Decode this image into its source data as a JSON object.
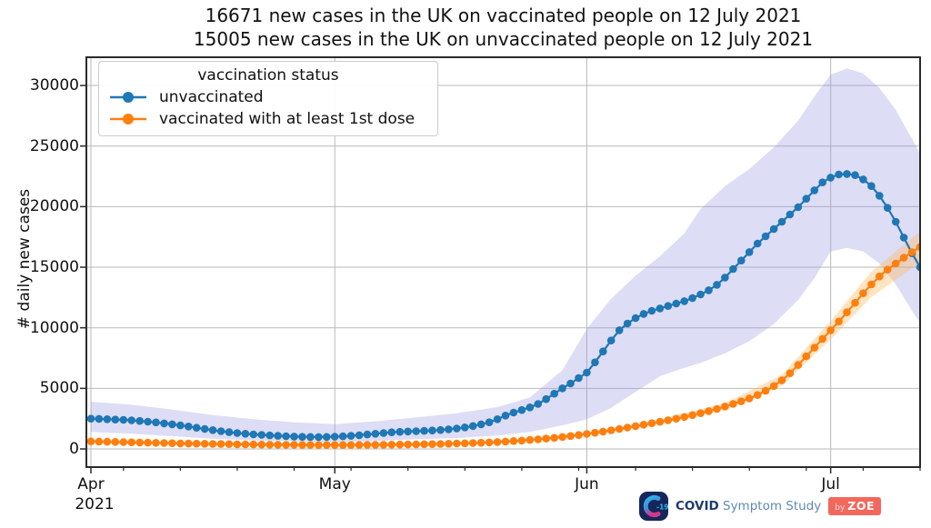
{
  "title": {
    "line1": "16671 new cases in the UK on vaccinated people on 12 July 2021",
    "line2": "15005 new cases in the UK on unvaccinated people on 12 July 2021"
  },
  "y_axis": {
    "label": "# daily new cases"
  },
  "x_axis": {
    "year_label": "2021"
  },
  "legend": {
    "title": "vaccination status",
    "entries": [
      {
        "label": "unvaccinated",
        "color": "#1f77b4"
      },
      {
        "label": "vaccinated with at least 1st dose",
        "color": "#ff7f0e"
      }
    ]
  },
  "branding": {
    "icon_label": "-19",
    "name_bold": "COVID",
    "name_rest": " Symptom Study",
    "badge_by": "by",
    "badge_zoe": "ZOE"
  },
  "chart_data": {
    "type": "line",
    "title": "16671 new cases in the UK on vaccinated people on 12 July 2021 / 15005 new cases in the UK on unvaccinated people on 12 July 2021",
    "xlabel": "",
    "ylabel": "# daily new cases",
    "x_start_date": "2021-04-01",
    "x_end_date": "2021-07-12",
    "x_unit": "day",
    "grid": true,
    "legend_position": "upper left",
    "layout": {
      "y_range": [
        -1500,
        32330
      ],
      "x_range_days": [
        -0.56,
        102
      ],
      "y_ticks": [
        0,
        5000,
        10000,
        15000,
        20000,
        25000,
        30000
      ],
      "x_months": [
        {
          "label": "Apr",
          "day": 0
        },
        {
          "label": "May",
          "day": 30
        },
        {
          "label": "Jun",
          "day": 61
        },
        {
          "label": "Jul",
          "day": 91
        }
      ],
      "x_minor_tick_days": [
        4,
        11,
        18,
        25,
        32,
        39,
        46,
        53,
        60,
        67,
        74,
        81,
        88,
        95,
        102
      ],
      "grid_color": "#b9b9b9",
      "spine_color": "#2b2b2b"
    },
    "series": [
      {
        "name": "unvaccinated",
        "color": "#1f77b4",
        "band_fill": "rgba(150,150,225,0.32)",
        "values": [
          2500,
          2480,
          2450,
          2420,
          2400,
          2360,
          2310,
          2250,
          2190,
          2110,
          2030,
          1940,
          1850,
          1750,
          1650,
          1550,
          1460,
          1380,
          1310,
          1250,
          1200,
          1160,
          1120,
          1080,
          1050,
          1020,
          1000,
          990,
          985,
          990,
          1010,
          1040,
          1080,
          1130,
          1190,
          1250,
          1310,
          1370,
          1410,
          1440,
          1460,
          1490,
          1520,
          1560,
          1620,
          1690,
          1780,
          1890,
          2030,
          2200,
          2450,
          2750,
          3000,
          3210,
          3430,
          3710,
          4110,
          4560,
          5000,
          5400,
          5850,
          6300,
          7150,
          8050,
          8950,
          9800,
          10350,
          10800,
          11150,
          11400,
          11600,
          11800,
          12000,
          12200,
          12450,
          12750,
          13100,
          13550,
          14150,
          14850,
          15550,
          16250,
          16950,
          17550,
          18150,
          18750,
          19350,
          19950,
          20650,
          21350,
          22000,
          22400,
          22650,
          22700,
          22600,
          22250,
          21700,
          20900,
          19900,
          18750,
          17450,
          16150,
          15005
        ],
        "ci_anchors": [
          [
            0,
            1400,
            3900
          ],
          [
            5,
            1250,
            3650
          ],
          [
            10,
            1050,
            3250
          ],
          [
            15,
            850,
            2800
          ],
          [
            20,
            700,
            2450
          ],
          [
            25,
            620,
            2200
          ],
          [
            30,
            570,
            2050
          ],
          [
            35,
            650,
            2280
          ],
          [
            40,
            800,
            2600
          ],
          [
            45,
            900,
            2950
          ],
          [
            50,
            1100,
            3450
          ],
          [
            54,
            1400,
            4250
          ],
          [
            58,
            1950,
            6500
          ],
          [
            61,
            2450,
            9900
          ],
          [
            64,
            3400,
            12400
          ],
          [
            67,
            4700,
            14300
          ],
          [
            70,
            6000,
            15900
          ],
          [
            73,
            6700,
            17800
          ],
          [
            75,
            7100,
            19800
          ],
          [
            78,
            7900,
            21700
          ],
          [
            81,
            8900,
            23100
          ],
          [
            84,
            10300,
            24900
          ],
          [
            87,
            12300,
            27100
          ],
          [
            89,
            14100,
            29100
          ],
          [
            91,
            16300,
            30900
          ],
          [
            93,
            16600,
            31400
          ],
          [
            95,
            16300,
            31000
          ],
          [
            97,
            15300,
            29800
          ],
          [
            99,
            13600,
            28000
          ],
          [
            101,
            11400,
            25600
          ],
          [
            102,
            10400,
            24400
          ]
        ]
      },
      {
        "name": "vaccinated with at least 1st dose",
        "color": "#ff7f0e",
        "band_fill": "rgba(255,185,95,0.38)",
        "values": [
          620,
          605,
          590,
          575,
          560,
          545,
          530,
          515,
          500,
          485,
          470,
          455,
          445,
          435,
          425,
          415,
          405,
          395,
          385,
          375,
          368,
          360,
          353,
          347,
          341,
          336,
          331,
          327,
          324,
          322,
          321,
          322,
          325,
          330,
          336,
          342,
          348,
          355,
          362,
          370,
          379,
          389,
          400,
          414,
          430,
          448,
          468,
          490,
          514,
          542,
          574,
          610,
          650,
          694,
          742,
          796,
          854,
          918,
          988,
          1064,
          1147,
          1237,
          1332,
          1432,
          1537,
          1647,
          1762,
          1882,
          2002,
          2122,
          2242,
          2367,
          2497,
          2637,
          2787,
          2947,
          3117,
          3302,
          3502,
          3712,
          3932,
          4172,
          4452,
          4792,
          5192,
          5672,
          6252,
          6932,
          7642,
          8362,
          9082,
          9800,
          10520,
          11280,
          12060,
          12850,
          13580,
          14240,
          14800,
          15300,
          15780,
          16240,
          16671
        ],
        "ci_anchors": [
          [
            0,
            543,
            697
          ],
          [
            10,
            405,
            535
          ],
          [
            20,
            312,
            428
          ],
          [
            30,
            271,
            379
          ],
          [
            40,
            319,
            435
          ],
          [
            50,
            499,
            645
          ],
          [
            61,
            1112,
            1358
          ],
          [
            70,
            2042,
            2438
          ],
          [
            78,
            3207,
            3793
          ],
          [
            85,
            5215,
            6125
          ],
          [
            91,
            9035,
            10565
          ],
          [
            96,
            12530,
            14630
          ],
          [
            102,
            15390,
            17950
          ]
        ]
      }
    ]
  }
}
